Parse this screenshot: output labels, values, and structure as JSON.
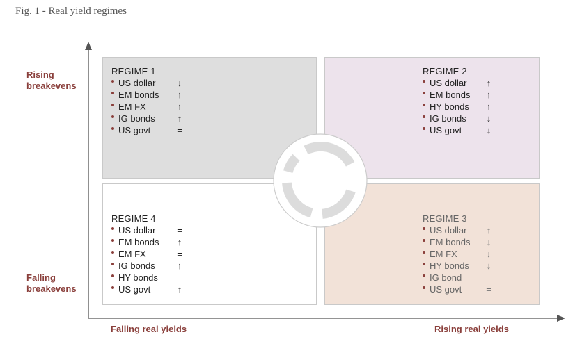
{
  "figure": {
    "title": "Fig. 1 - Real yield regimes"
  },
  "axes": {
    "y_top_label": [
      "Rising",
      "breakevens"
    ],
    "y_bottom_label": [
      "Falling",
      "breakevens"
    ],
    "x_left_label": "Falling real yields",
    "x_right_label": "Rising real yields"
  },
  "colors": {
    "label_accent": "#8a3f3b",
    "regime1_bg": "#dedede",
    "regime2_bg": "#ede3ec",
    "regime3_bg": "#f2e2d8",
    "regime4_bg": "#ffffff",
    "cycle_ring": "#dcdcdc"
  },
  "regimes": {
    "r1": {
      "title": "REGIME 1",
      "items": [
        {
          "asset": "US dollar",
          "signal": "↓"
        },
        {
          "asset": "EM bonds",
          "signal": "↑"
        },
        {
          "asset": "EM FX",
          "signal": "↑"
        },
        {
          "asset": "IG bonds",
          "signal": "↑"
        },
        {
          "asset": "US govt",
          "signal": "="
        }
      ]
    },
    "r2": {
      "title": "REGIME 2",
      "items": [
        {
          "asset": "US dollar",
          "signal": "↑"
        },
        {
          "asset": "EM bonds",
          "signal": "↑"
        },
        {
          "asset": "HY bonds",
          "signal": "↑"
        },
        {
          "asset": "IG bonds",
          "signal": "↓"
        },
        {
          "asset": "US govt",
          "signal": "↓"
        }
      ]
    },
    "r3": {
      "title": "REGIME 3",
      "items": [
        {
          "asset": "US dollar",
          "signal": "↑"
        },
        {
          "asset": "EM bonds",
          "signal": "↓"
        },
        {
          "asset": "EM FX",
          "signal": "↓"
        },
        {
          "asset": "HY bonds",
          "signal": "↓"
        },
        {
          "asset": "IG bond",
          "signal": "="
        },
        {
          "asset": "US govt",
          "signal": "="
        }
      ]
    },
    "r4": {
      "title": "REGIME 4",
      "items": [
        {
          "asset": "US dollar",
          "signal": "="
        },
        {
          "asset": "EM bonds",
          "signal": "↑"
        },
        {
          "asset": "EM FX",
          "signal": "="
        },
        {
          "asset": "IG bonds",
          "signal": "↑"
        },
        {
          "asset": "HY bonds",
          "signal": "="
        },
        {
          "asset": "US govt",
          "signal": "↑"
        }
      ]
    }
  }
}
